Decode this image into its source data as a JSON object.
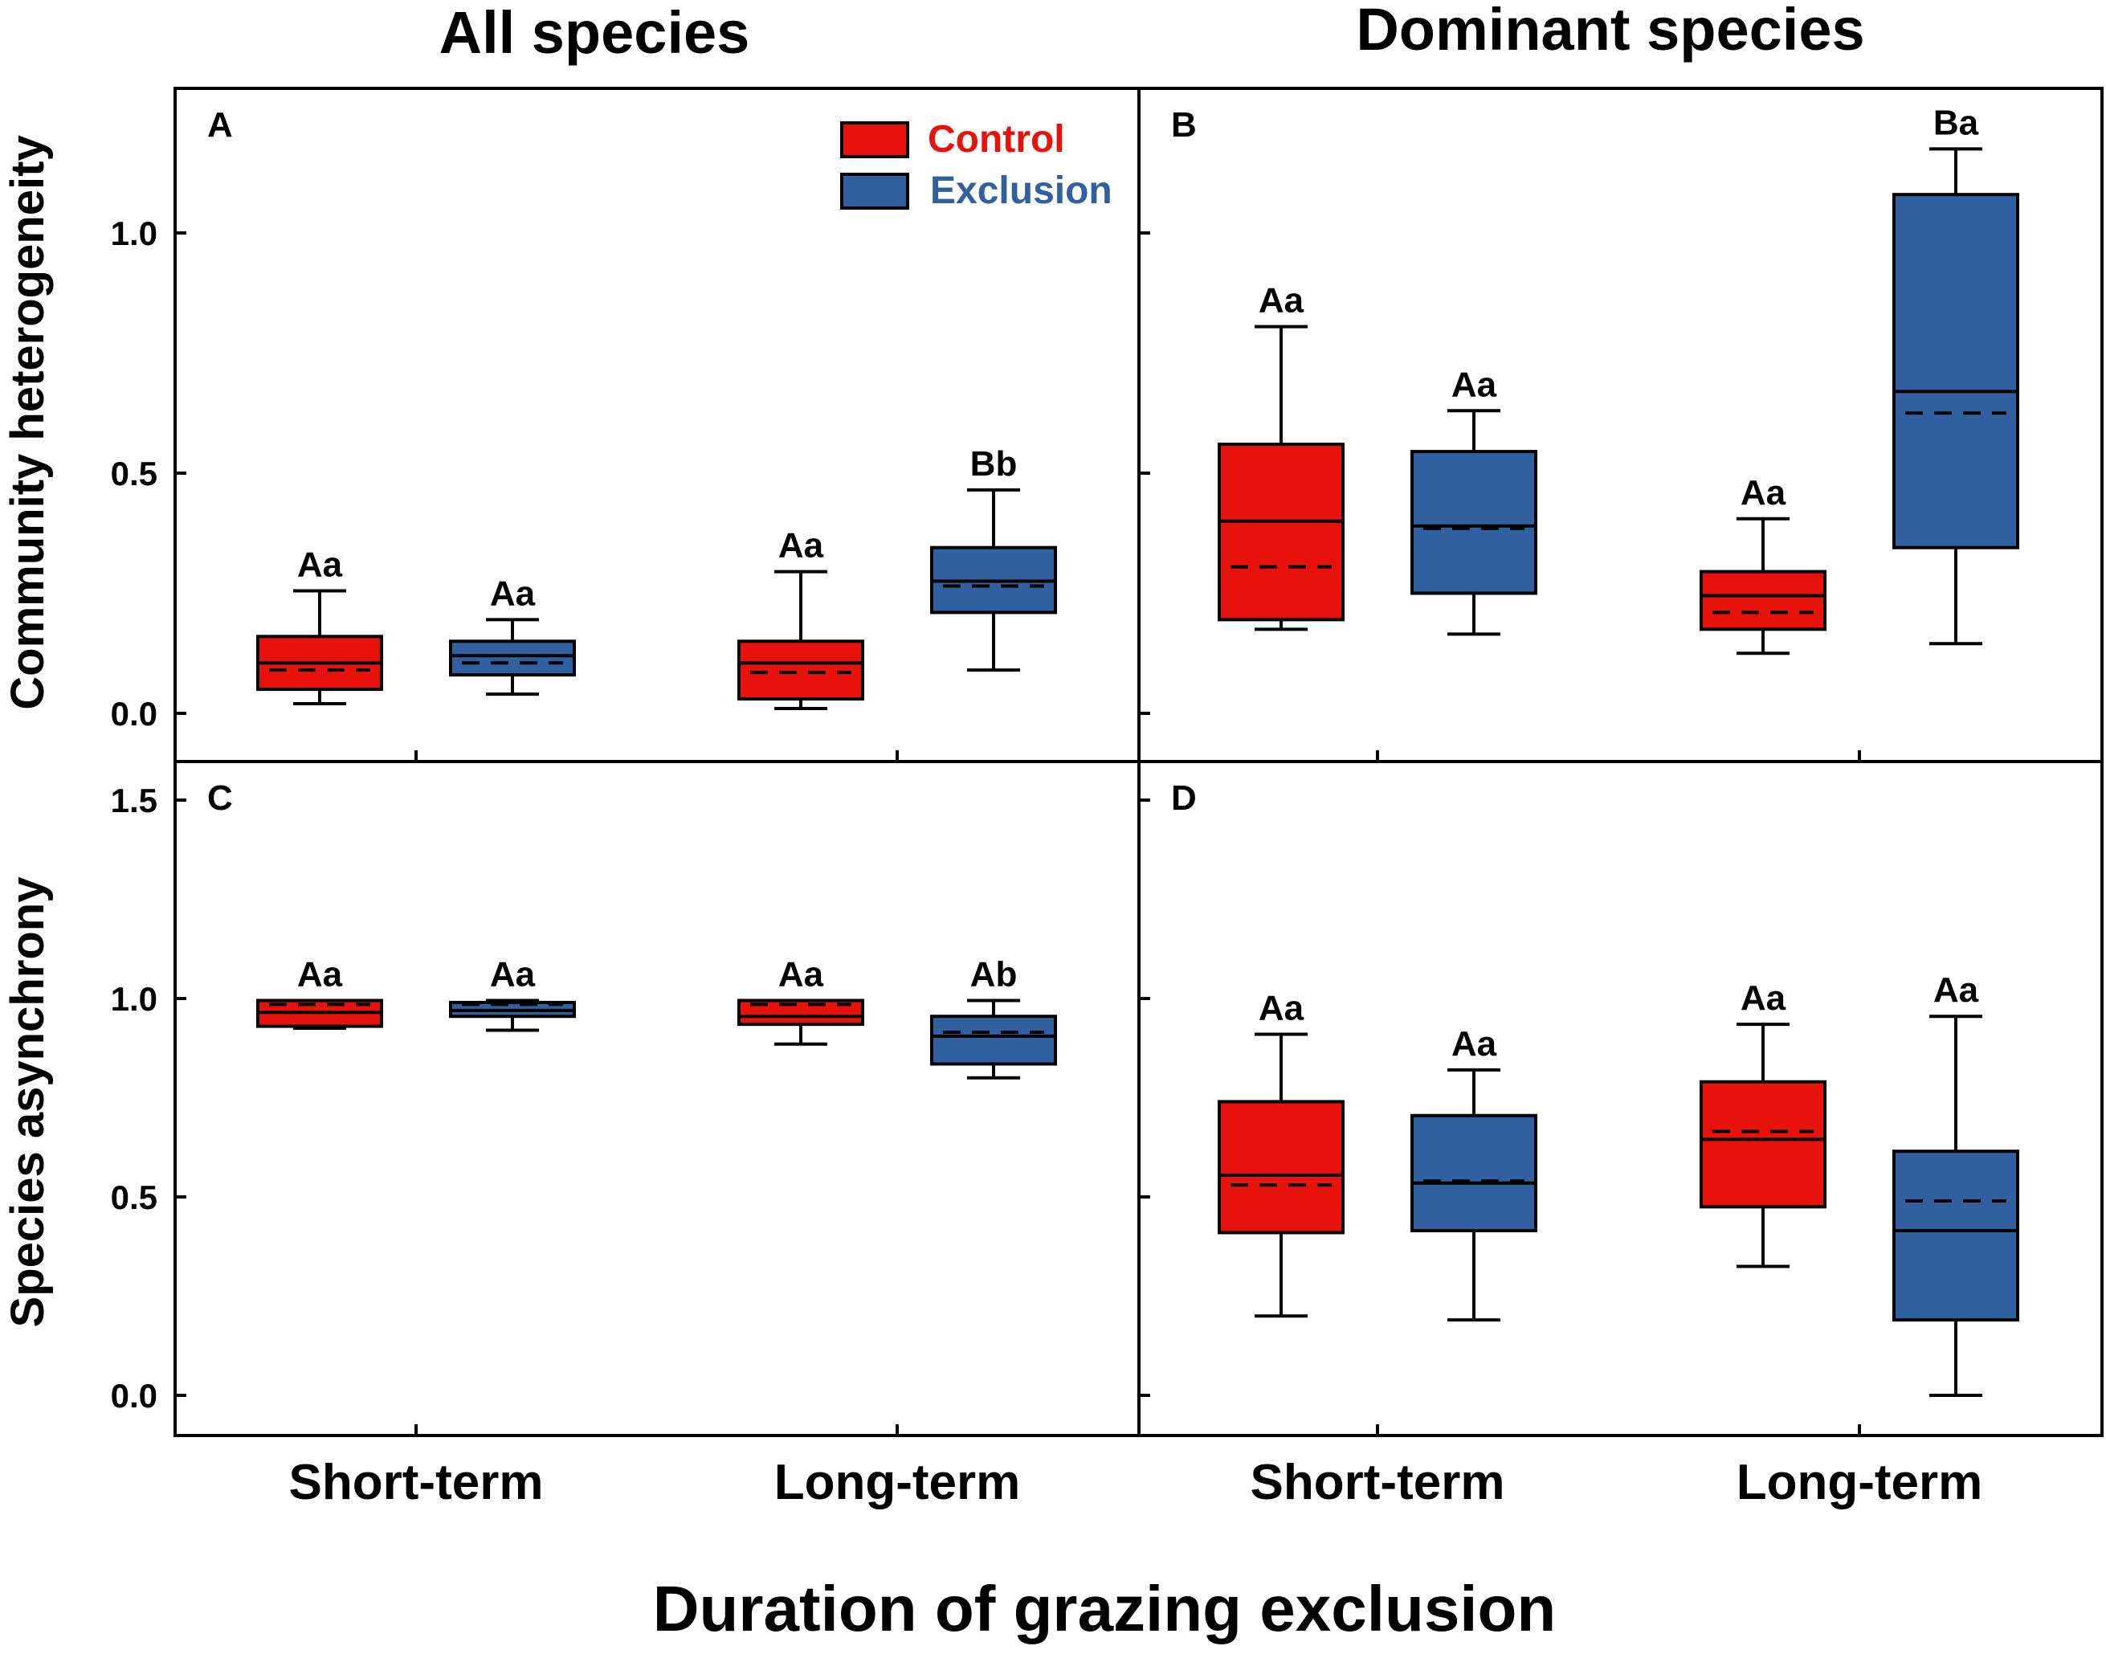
{
  "col_titles": [
    "All species",
    "Dominant species"
  ],
  "y_labels": [
    "Community heterogeneity",
    "Species asynchrony"
  ],
  "x_title": "Duration of grazing exclusion",
  "categories": [
    "Short-term",
    "Long-term"
  ],
  "legend": [
    {
      "label": "Control",
      "color": "#e8120c"
    },
    {
      "label": "Exclusion",
      "color": "#3060a0"
    }
  ],
  "colors": {
    "control": "#e8120c",
    "exclusion": "#3060a0",
    "axis": "#000000"
  },
  "chart_data": [
    {
      "type": "box",
      "panel": "A",
      "title": "All species",
      "ylabel": "Community heterogeneity",
      "xlabel": "",
      "categories": [
        "Short-term",
        "Long-term"
      ],
      "ylim": [
        -0.1,
        1.3
      ],
      "yticks": [
        0.0,
        0.5,
        1.0
      ],
      "ytick_labels": [
        "0.0",
        "0.5",
        "1.0"
      ],
      "series": [
        {
          "name": "Control",
          "boxes": [
            {
              "whisker_low": 0.02,
              "q1": 0.05,
              "median": 0.105,
              "q3": 0.16,
              "whisker_high": 0.255,
              "mean": 0.09,
              "label": "Aa"
            },
            {
              "whisker_low": 0.01,
              "q1": 0.03,
              "median": 0.105,
              "q3": 0.15,
              "whisker_high": 0.295,
              "mean": 0.085,
              "label": "Aa"
            }
          ]
        },
        {
          "name": "Exclusion",
          "boxes": [
            {
              "whisker_low": 0.04,
              "q1": 0.08,
              "median": 0.12,
              "q3": 0.15,
              "whisker_high": 0.195,
              "mean": 0.105,
              "label": "Aa"
            },
            {
              "whisker_low": 0.09,
              "q1": 0.21,
              "median": 0.275,
              "q3": 0.345,
              "whisker_high": 0.465,
              "mean": 0.265,
              "label": "Bb"
            }
          ]
        }
      ]
    },
    {
      "type": "box",
      "panel": "B",
      "title": "Dominant species",
      "ylabel": "Community heterogeneity",
      "xlabel": "",
      "categories": [
        "Short-term",
        "Long-term"
      ],
      "ylim": [
        -0.1,
        1.3
      ],
      "yticks": [
        0.0,
        0.5,
        1.0
      ],
      "ytick_labels": [
        "",
        "",
        ""
      ],
      "series": [
        {
          "name": "Control",
          "boxes": [
            {
              "whisker_low": 0.175,
              "q1": 0.195,
              "median": 0.4,
              "q3": 0.56,
              "whisker_high": 0.805,
              "mean": 0.305,
              "label": "Aa"
            },
            {
              "whisker_low": 0.125,
              "q1": 0.175,
              "median": 0.245,
              "q3": 0.295,
              "whisker_high": 0.405,
              "mean": 0.21,
              "label": "Aa"
            }
          ]
        },
        {
          "name": "Exclusion",
          "boxes": [
            {
              "whisker_low": 0.165,
              "q1": 0.25,
              "median": 0.39,
              "q3": 0.545,
              "whisker_high": 0.63,
              "mean": 0.385,
              "label": "Aa"
            },
            {
              "whisker_low": 0.145,
              "q1": 0.345,
              "median": 0.67,
              "q3": 1.08,
              "whisker_high": 1.175,
              "mean": 0.625,
              "label": "Ba"
            }
          ]
        }
      ]
    },
    {
      "type": "box",
      "panel": "C",
      "title": "",
      "ylabel": "Species asynchrony",
      "xlabel": "Duration of grazing exclusion",
      "categories": [
        "Short-term",
        "Long-term"
      ],
      "ylim": [
        -0.1,
        1.6
      ],
      "yticks": [
        0.0,
        0.5,
        1.0,
        1.5
      ],
      "ytick_labels": [
        "0.0",
        "0.5",
        "1.0",
        "1.5"
      ],
      "series": [
        {
          "name": "Control",
          "boxes": [
            {
              "whisker_low": 0.925,
              "q1": 0.93,
              "median": 0.965,
              "q3": 0.995,
              "whisker_high": 0.995,
              "mean": 0.985,
              "label": "Aa"
            },
            {
              "whisker_low": 0.885,
              "q1": 0.935,
              "median": 0.955,
              "q3": 0.995,
              "whisker_high": 0.995,
              "mean": 0.985,
              "label": "Aa"
            }
          ]
        },
        {
          "name": "Exclusion",
          "boxes": [
            {
              "whisker_low": 0.92,
              "q1": 0.955,
              "median": 0.97,
              "q3": 0.99,
              "whisker_high": 0.995,
              "mean": 0.985,
              "label": "Aa"
            },
            {
              "whisker_low": 0.8,
              "q1": 0.835,
              "median": 0.905,
              "q3": 0.955,
              "whisker_high": 0.995,
              "mean": 0.915,
              "label": "Ab"
            }
          ]
        }
      ]
    },
    {
      "type": "box",
      "panel": "D",
      "title": "",
      "ylabel": "Species asynchrony",
      "xlabel": "Duration of grazing exclusion",
      "categories": [
        "Short-term",
        "Long-term"
      ],
      "ylim": [
        -0.1,
        1.6
      ],
      "yticks": [
        0.0,
        0.5,
        1.0,
        1.5
      ],
      "ytick_labels": [
        "",
        "",
        "",
        ""
      ],
      "series": [
        {
          "name": "Control",
          "boxes": [
            {
              "whisker_low": 0.2,
              "q1": 0.41,
              "median": 0.555,
              "q3": 0.74,
              "whisker_high": 0.91,
              "mean": 0.53,
              "label": "Aa"
            },
            {
              "whisker_low": 0.325,
              "q1": 0.475,
              "median": 0.645,
              "q3": 0.79,
              "whisker_high": 0.935,
              "mean": 0.665,
              "label": "Aa"
            }
          ]
        },
        {
          "name": "Exclusion",
          "boxes": [
            {
              "whisker_low": 0.19,
              "q1": 0.415,
              "median": 0.535,
              "q3": 0.705,
              "whisker_high": 0.82,
              "mean": 0.54,
              "label": "Aa"
            },
            {
              "whisker_low": 0.0,
              "q1": 0.19,
              "median": 0.415,
              "q3": 0.615,
              "whisker_high": 0.955,
              "mean": 0.49,
              "label": "Aa"
            }
          ]
        }
      ]
    }
  ]
}
